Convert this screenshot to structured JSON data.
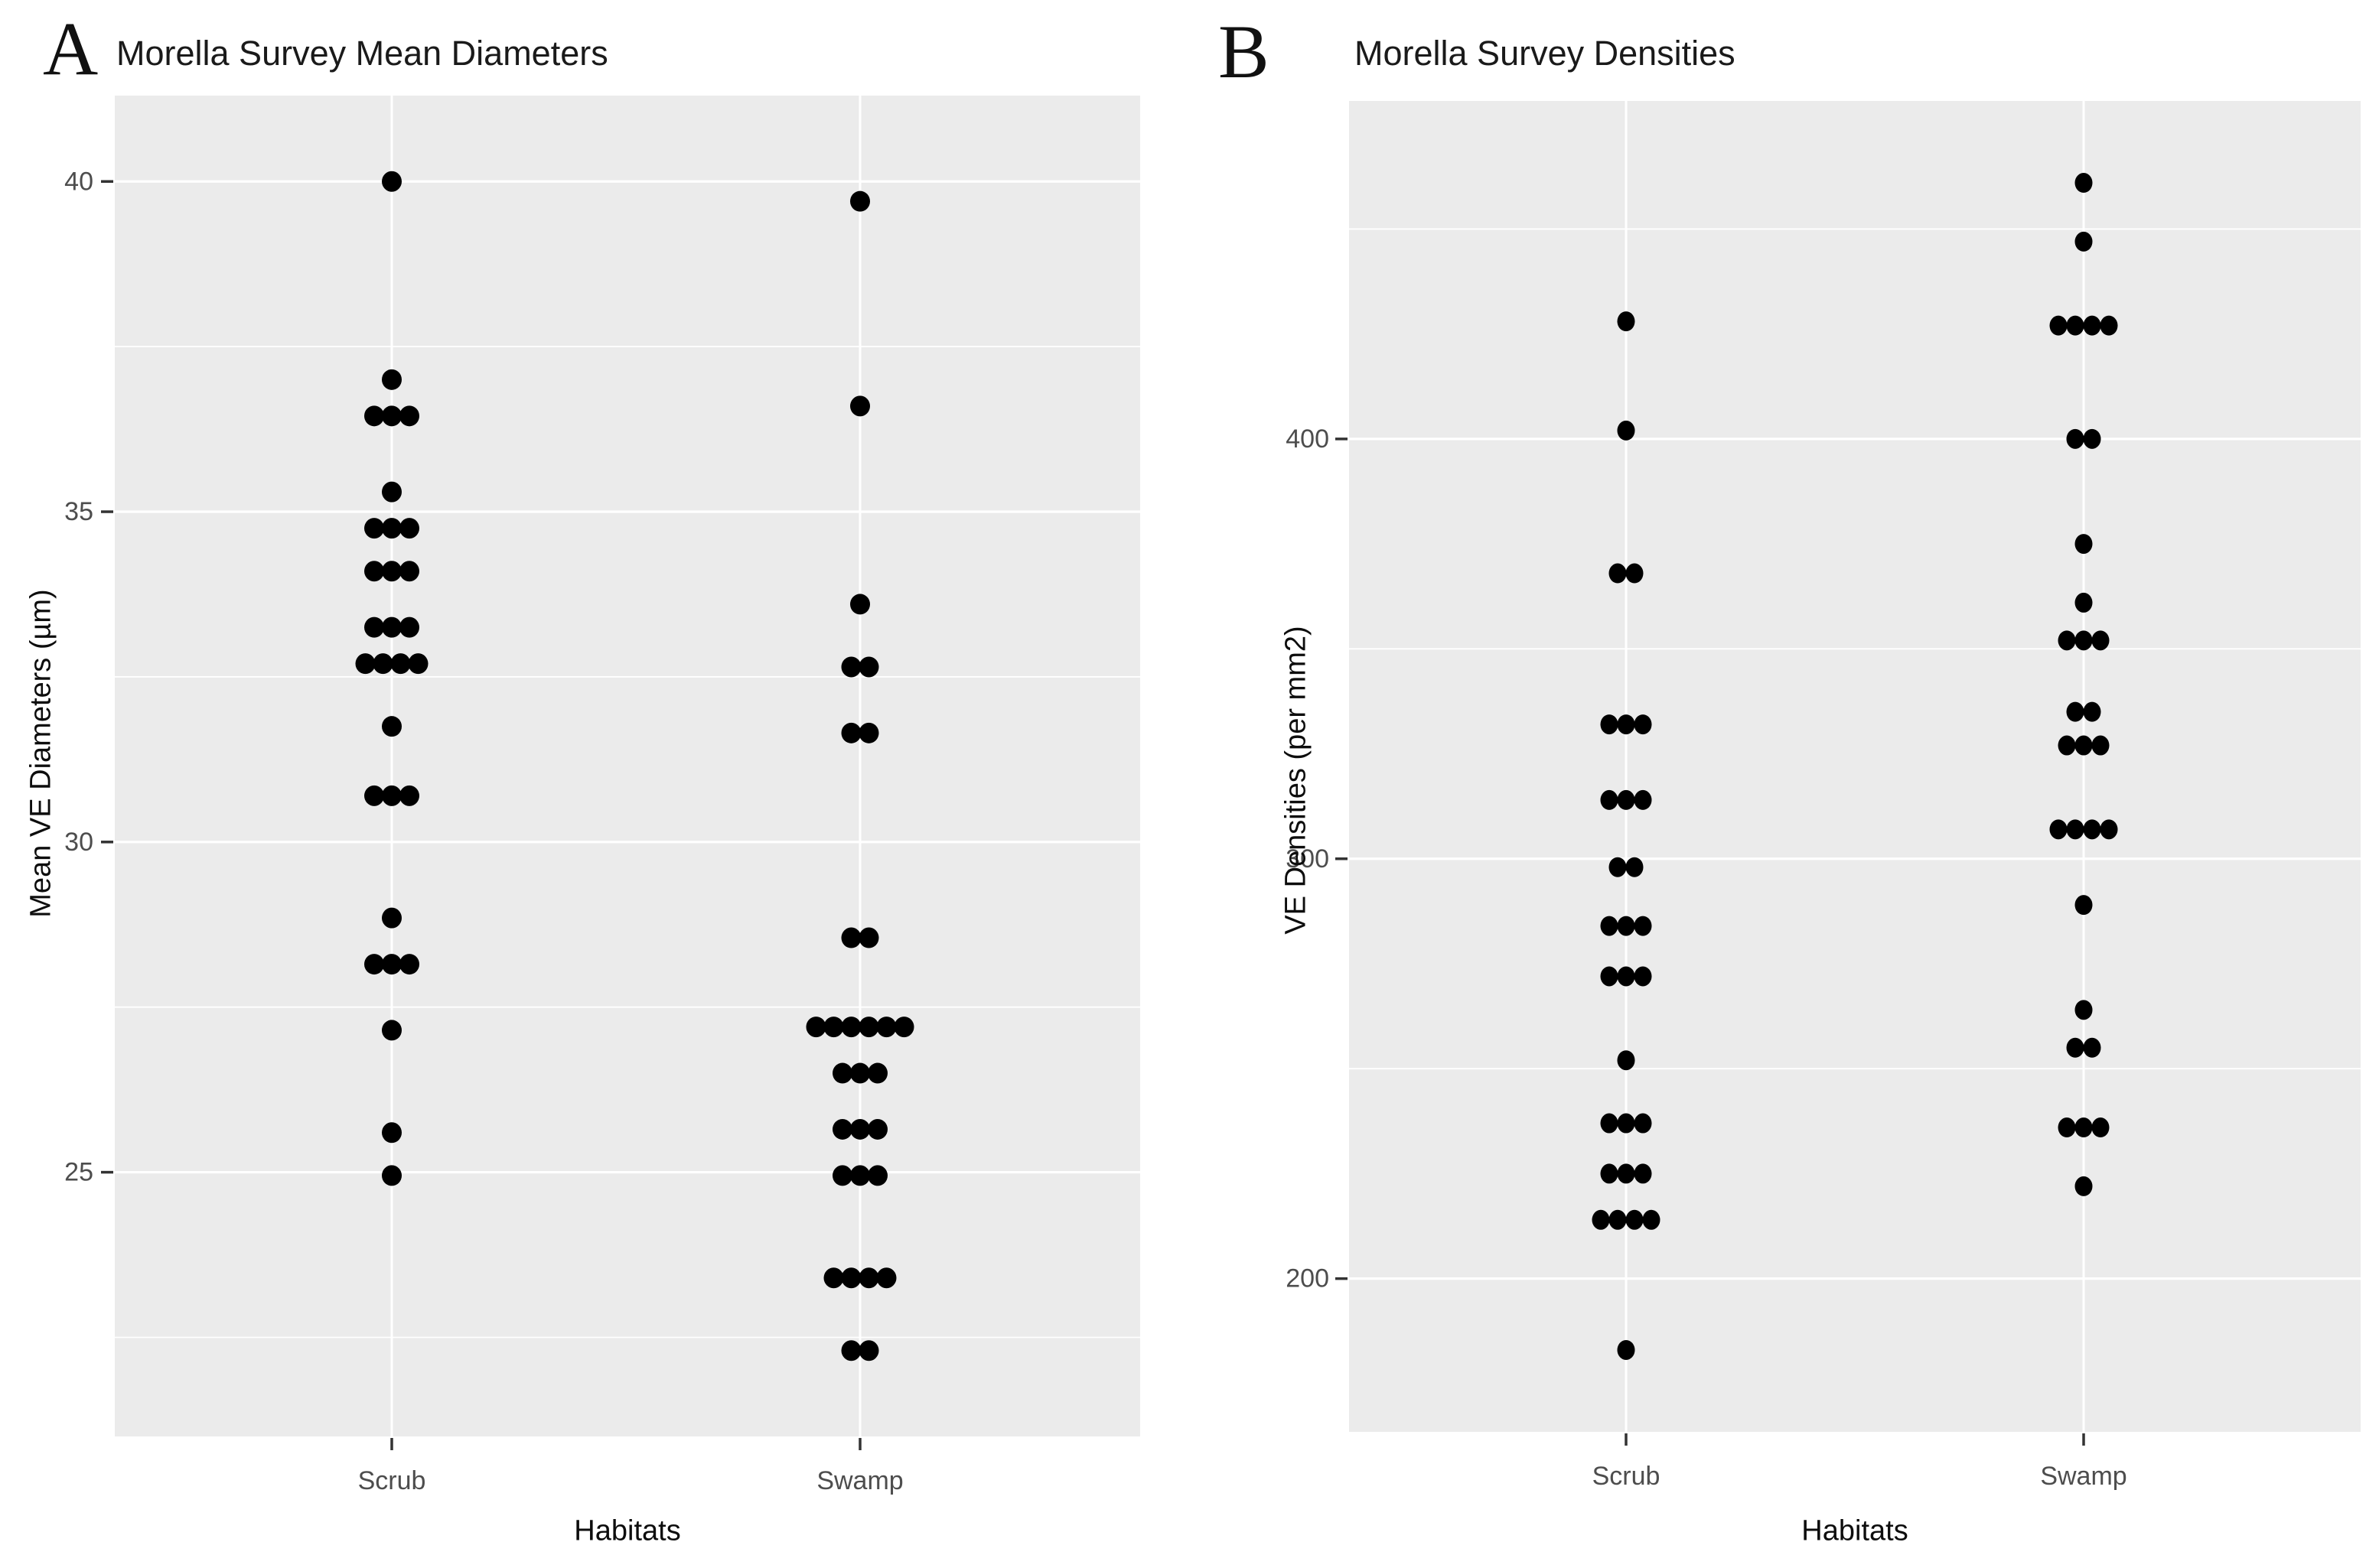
{
  "figure": {
    "background": "#ffffff",
    "panel_background": "#ebebeb",
    "dot_color": "#000000",
    "gridline_color": "#ffffff",
    "tick_label_color": "#4d4d4d",
    "axis_title_color": "#0d0d0d"
  },
  "panels": [
    {
      "panel_label": "A",
      "title": "Morella Survey Mean Diameters",
      "y_title": "Mean VE Diameters (µm)",
      "x_title": "Habitats",
      "categories": [
        "Scrub",
        "Swamp"
      ]
    },
    {
      "panel_label": "B",
      "title": "Morella Survey Densities",
      "y_title": "VE Densities (per mm2)",
      "x_title": "Habitats",
      "categories": [
        "Scrub",
        "Swamp"
      ]
    }
  ],
  "chart_data": [
    {
      "type": "scatter",
      "title": "Morella Survey Mean Diameters",
      "xlabel": "Habitats",
      "ylabel": "Mean VE Diameters (µm)",
      "categories": [
        "Scrub",
        "Swamp"
      ],
      "yticks": [
        25,
        30,
        35,
        40
      ],
      "yticks_minor": [
        22.5,
        27.5,
        32.5,
        37.5
      ],
      "ylim": [
        21.0,
        41.3
      ],
      "grid": true,
      "legend": "none",
      "series": [
        {
          "name": "Scrub",
          "values": [
            40.0,
            37.0,
            36.45,
            36.45,
            36.45,
            35.3,
            34.75,
            34.75,
            34.75,
            34.1,
            34.1,
            34.1,
            33.25,
            33.25,
            33.25,
            32.7,
            32.7,
            32.7,
            32.7,
            31.75,
            30.7,
            30.7,
            30.7,
            28.85,
            28.15,
            28.15,
            28.15,
            27.15,
            25.6,
            24.95
          ]
        },
        {
          "name": "Swamp",
          "values": [
            39.7,
            36.6,
            33.6,
            32.65,
            32.65,
            31.65,
            31.65,
            28.55,
            28.55,
            27.2,
            27.2,
            27.2,
            27.2,
            27.2,
            27.2,
            26.5,
            26.5,
            26.5,
            25.65,
            25.65,
            25.65,
            24.95,
            24.95,
            24.95,
            23.4,
            23.4,
            23.4,
            23.4,
            22.3,
            22.3
          ]
        }
      ]
    },
    {
      "type": "scatter",
      "title": "Morella Survey Densities",
      "xlabel": "Habitats",
      "ylabel": "VE Densities (per mm2)",
      "categories": [
        "Scrub",
        "Swamp"
      ],
      "yticks": [
        200,
        300,
        400
      ],
      "yticks_minor": [
        250,
        350,
        450
      ],
      "ylim": [
        163.5,
        480.5
      ],
      "grid": true,
      "legend": "none",
      "series": [
        {
          "name": "Scrub",
          "values": [
            428,
            402,
            368,
            368,
            332,
            332,
            332,
            314,
            314,
            314,
            298,
            298,
            284,
            284,
            284,
            272,
            272,
            272,
            252,
            237,
            237,
            237,
            225,
            225,
            225,
            214,
            214,
            214,
            214,
            183
          ]
        },
        {
          "name": "Swamp",
          "values": [
            461,
            447,
            427,
            427,
            427,
            427,
            400,
            400,
            375,
            361,
            352,
            352,
            352,
            335,
            335,
            327,
            327,
            327,
            307,
            307,
            307,
            307,
            289,
            264,
            255,
            255,
            236,
            236,
            236,
            222
          ]
        }
      ]
    }
  ]
}
